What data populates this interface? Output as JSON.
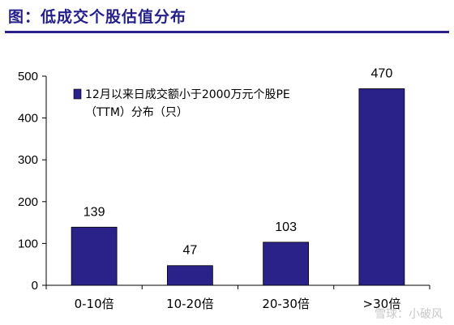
{
  "title": "图：低成交个股估值分布",
  "watermark": "雪球：小破风",
  "colors": {
    "bar": "#2a2288",
    "title": "#241f8a",
    "axis": "#000000"
  },
  "chart_data": {
    "type": "bar",
    "categories": [
      "0-10倍",
      "10-20倍",
      "20-30倍",
      ">30倍"
    ],
    "series": [
      {
        "name": "12月以来日成交额小于2000万元个股PE（TTM）分布（只）",
        "values": [
          139,
          47,
          103,
          470
        ]
      }
    ],
    "legend_lines": [
      "12月以来日成交额小于2000万元个股PE",
      "（TTM）分布（只）"
    ],
    "yticks": [
      0,
      100,
      200,
      300,
      400,
      500
    ],
    "ylim": [
      0,
      500
    ],
    "grid": false,
    "legend_position": "top-left"
  }
}
